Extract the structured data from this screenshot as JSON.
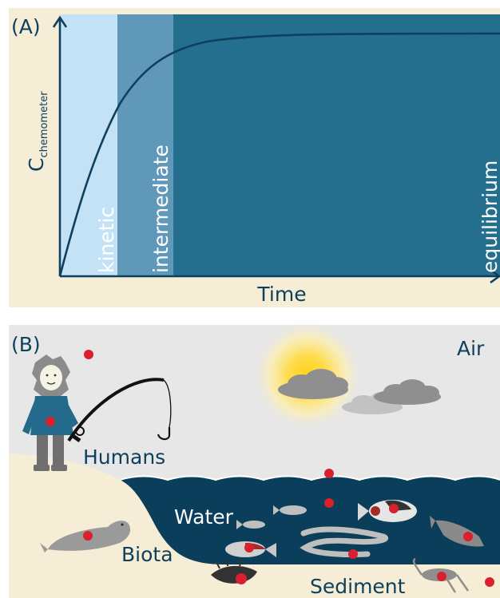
{
  "panel_a": {
    "label": "(A)",
    "y_axis_label_main": "C",
    "y_axis_label_sub": "chemometer",
    "x_axis_label": "Time",
    "regions": [
      {
        "name": "kinetic",
        "color": "#c4e2f6"
      },
      {
        "name": "intermediate",
        "color": "#5f98b8"
      },
      {
        "name": "equilibrium",
        "color": "#256f8e"
      }
    ],
    "curve_color": "#0e3f5c",
    "background": "#f5edd5"
  },
  "panel_b": {
    "label": "(B)",
    "compartments": {
      "air": "Air",
      "humans": "Humans",
      "water": "Water",
      "biota": "Biota",
      "sediment": "Sediment"
    },
    "colors": {
      "air": "#e7e7e7",
      "water": "#0b3e5b",
      "sand": "#f5edd5",
      "dot": "#d8202f",
      "text": "#0e3f5c"
    }
  }
}
